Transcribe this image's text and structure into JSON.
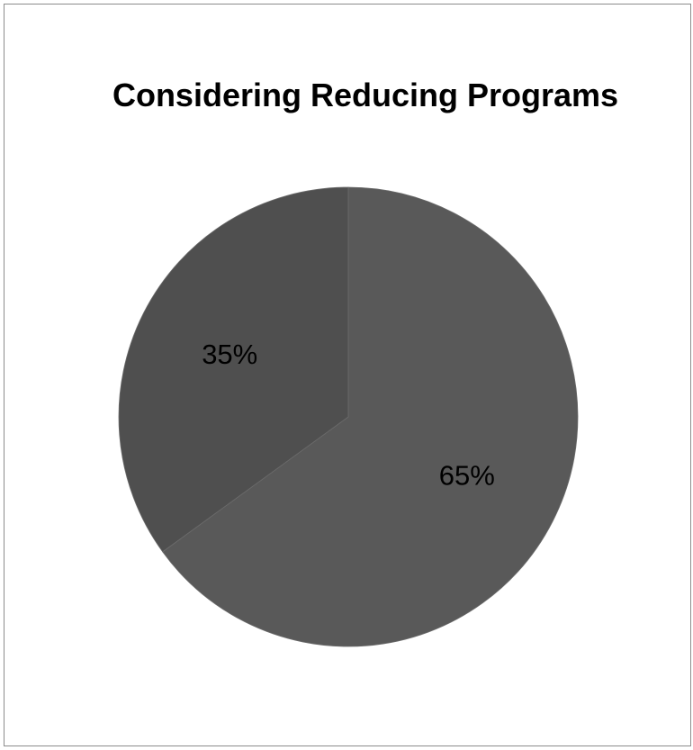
{
  "chart_data": {
    "type": "pie",
    "title": "Considering Reducing Programs",
    "slices": [
      {
        "label": "65%",
        "value": 65,
        "color": "#595959"
      },
      {
        "label": "35%",
        "value": 35,
        "color": "#4f4f4f"
      }
    ],
    "legend": "none"
  }
}
